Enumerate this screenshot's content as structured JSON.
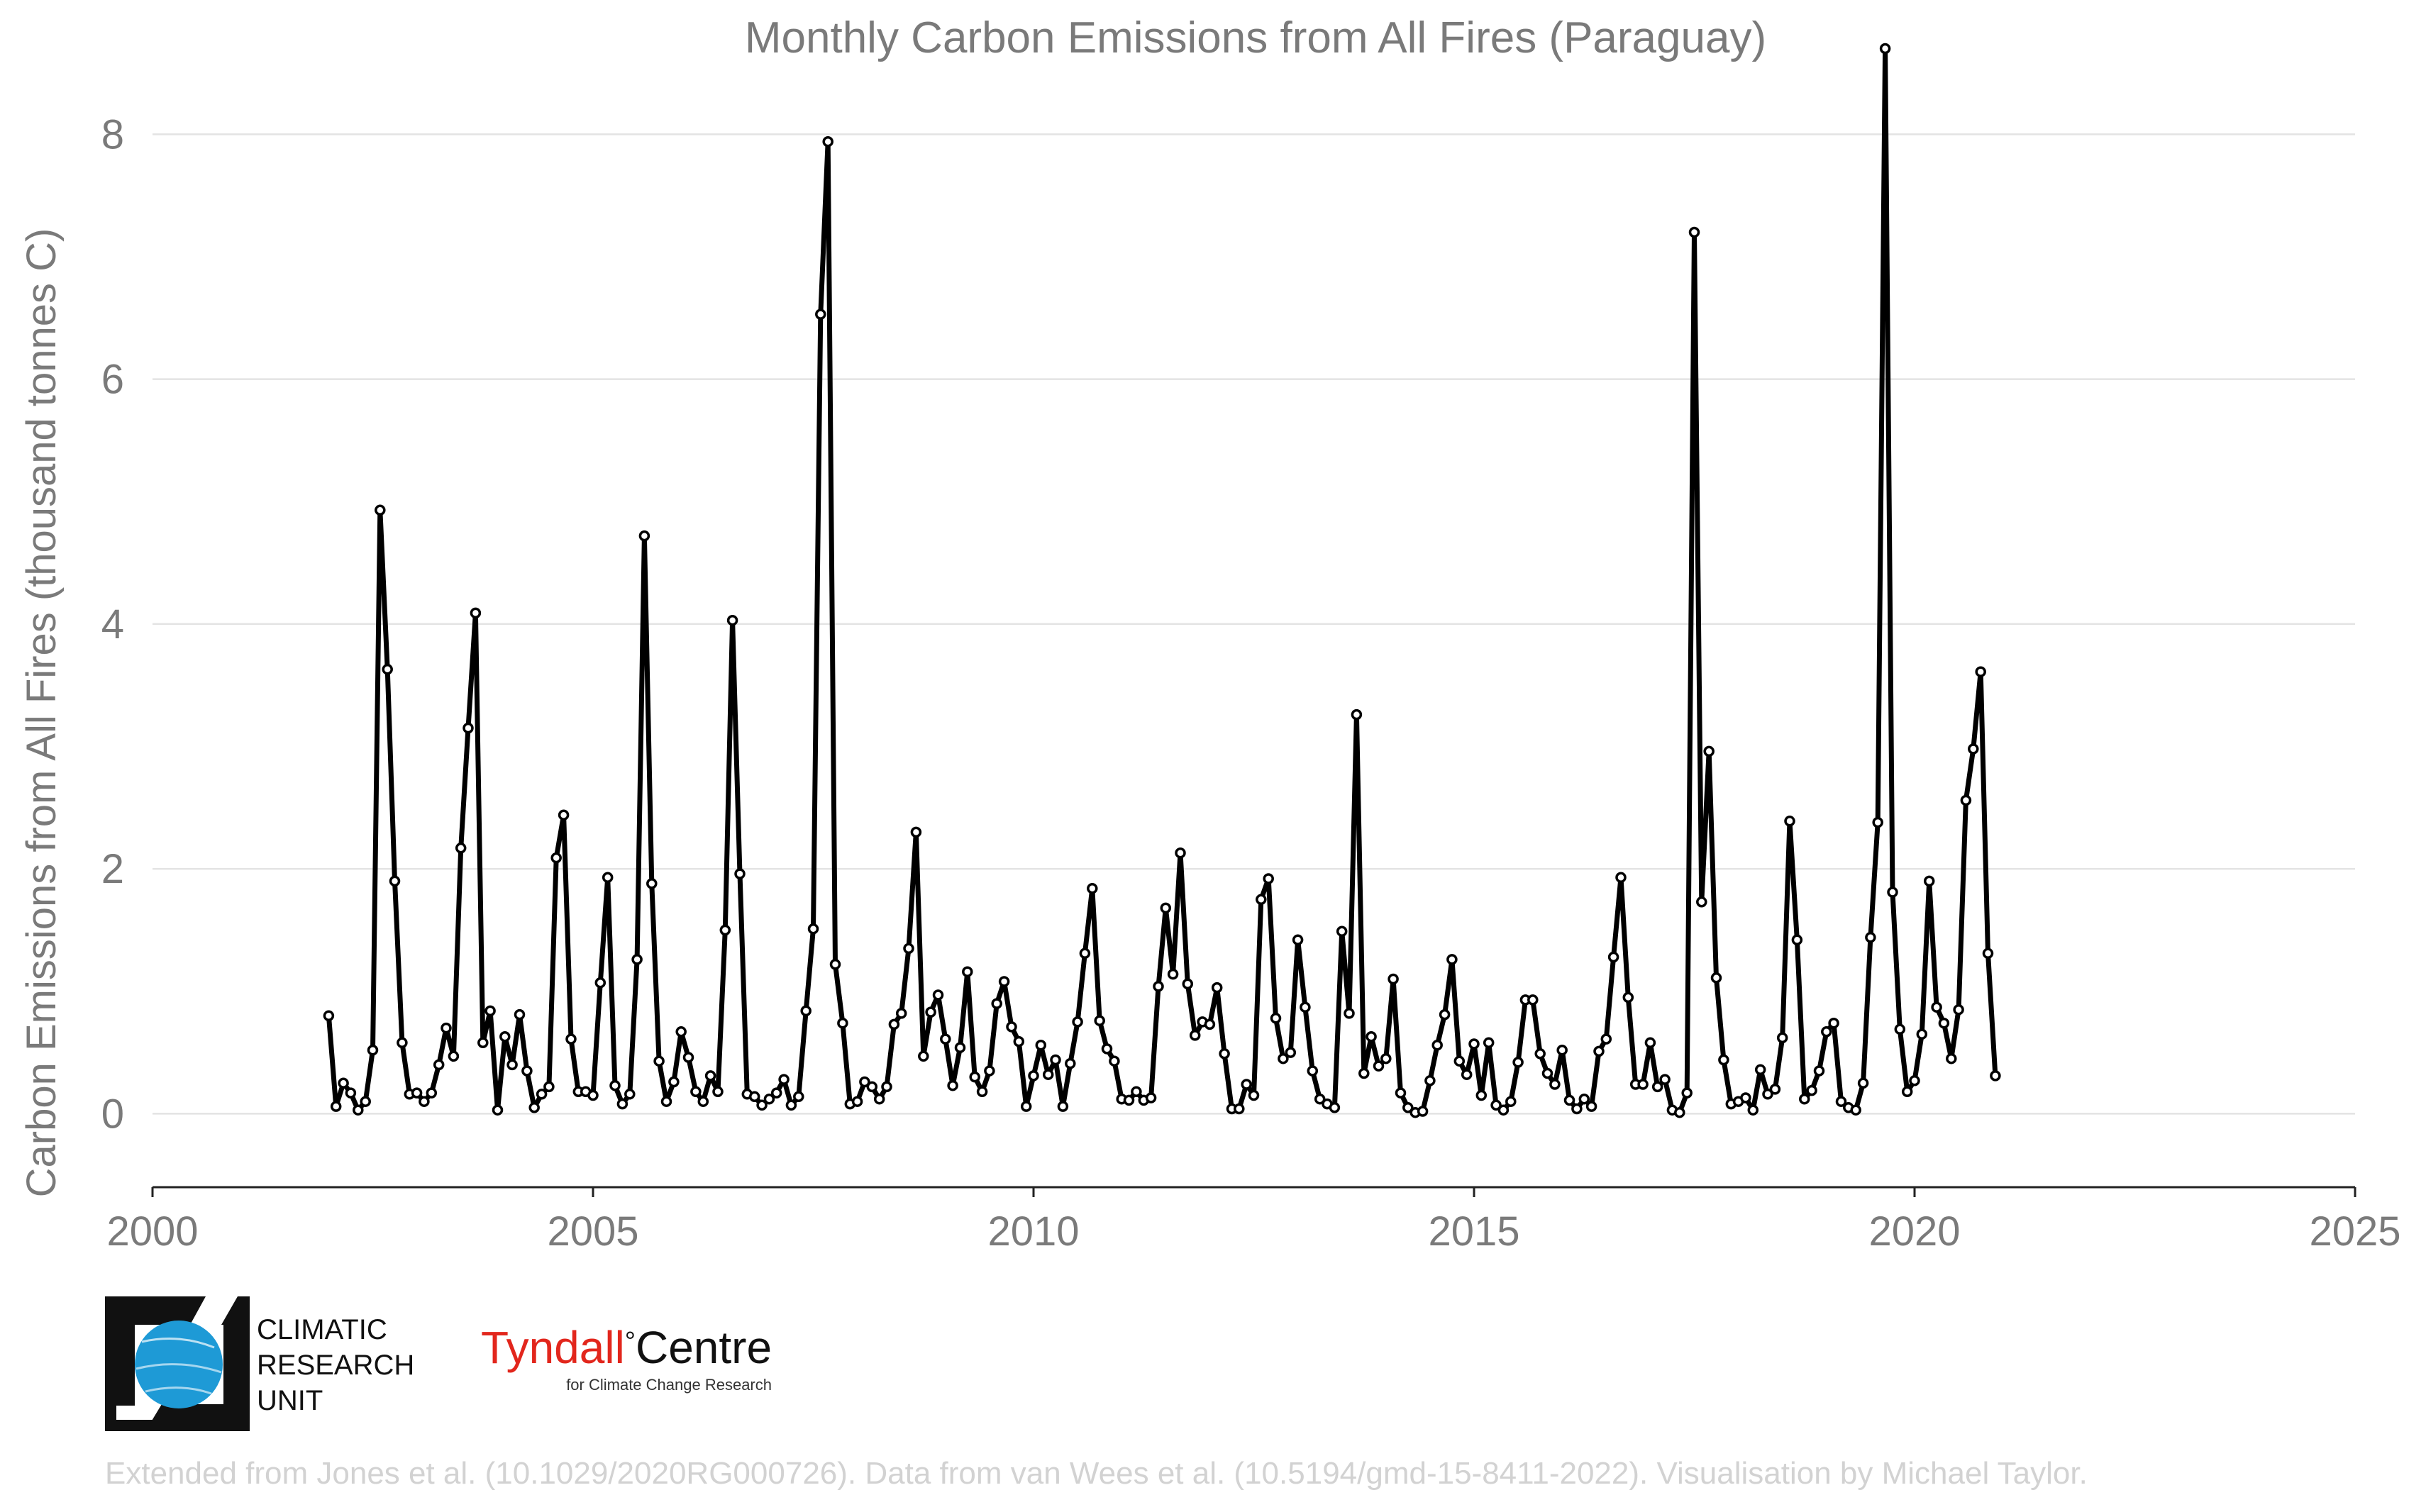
{
  "chart_data": {
    "type": "line",
    "title": "Monthly Carbon Emissions from All Fires (Paraguay)",
    "xlabel": "",
    "ylabel": "Carbon Emissions from All Fires (thousand tonnes C)",
    "xlim": [
      2000,
      2025
    ],
    "ylim": [
      -0.6,
      8.9
    ],
    "x_ticks": [
      2000,
      2005,
      2010,
      2015,
      2020,
      2025
    ],
    "y_ticks": [
      0,
      2,
      4,
      6,
      8
    ],
    "grid": "horizontal",
    "legend": "none",
    "line_color": "#000000",
    "series": [
      {
        "start_year": 2002,
        "start_month": 1,
        "frequency": "monthly",
        "values": [
          0.8,
          0.06,
          0.25,
          0.17,
          0.03,
          0.1,
          0.52,
          4.93,
          3.63,
          1.9,
          0.58,
          0.16,
          0.17,
          0.1,
          0.17,
          0.4,
          0.7,
          0.47,
          2.17,
          3.15,
          4.09,
          0.58,
          0.84,
          0.03,
          0.63,
          0.4,
          0.81,
          0.35,
          0.05,
          0.16,
          0.22,
          2.09,
          2.44,
          0.61,
          0.18,
          0.18,
          0.15,
          1.07,
          1.93,
          0.23,
          0.08,
          0.16,
          1.26,
          4.72,
          1.88,
          0.43,
          0.1,
          0.26,
          0.67,
          0.46,
          0.18,
          0.1,
          0.31,
          0.18,
          1.5,
          4.03,
          1.96,
          0.16,
          0.14,
          0.07,
          0.12,
          0.17,
          0.28,
          0.07,
          0.14,
          0.84,
          1.51,
          6.53,
          7.94,
          1.22,
          0.74,
          0.08,
          0.1,
          0.26,
          0.22,
          0.12,
          0.22,
          0.73,
          0.82,
          1.35,
          2.3,
          0.47,
          0.83,
          0.97,
          0.61,
          0.23,
          0.54,
          1.16,
          0.3,
          0.18,
          0.35,
          0.9,
          1.08,
          0.71,
          0.59,
          0.06,
          0.31,
          0.56,
          0.32,
          0.44,
          0.06,
          0.41,
          0.75,
          1.31,
          1.84,
          0.76,
          0.53,
          0.43,
          0.12,
          0.11,
          0.18,
          0.11,
          0.13,
          1.04,
          1.68,
          1.14,
          2.13,
          1.06,
          0.64,
          0.75,
          0.73,
          1.03,
          0.49,
          0.04,
          0.04,
          0.24,
          0.15,
          1.75,
          1.92,
          0.78,
          0.45,
          0.5,
          1.42,
          0.87,
          0.35,
          0.12,
          0.08,
          0.05,
          1.49,
          0.82,
          3.26,
          0.33,
          0.63,
          0.39,
          0.45,
          1.1,
          0.17,
          0.05,
          0.01,
          0.02,
          0.27,
          0.56,
          0.81,
          1.26,
          0.43,
          0.32,
          0.57,
          0.15,
          0.58,
          0.07,
          0.03,
          0.1,
          0.42,
          0.93,
          0.93,
          0.49,
          0.33,
          0.24,
          0.52,
          0.11,
          0.04,
          0.12,
          0.06,
          0.51,
          0.61,
          1.28,
          1.93,
          0.95,
          0.24,
          0.24,
          0.58,
          0.22,
          0.28,
          0.03,
          0.01,
          0.17,
          7.2,
          1.73,
          2.96,
          1.11,
          0.44,
          0.08,
          0.1,
          0.13,
          0.03,
          0.36,
          0.16,
          0.2,
          0.62,
          2.39,
          1.42,
          0.12,
          0.19,
          0.35,
          0.67,
          0.74,
          0.1,
          0.05,
          0.03,
          0.25,
          1.44,
          2.38,
          8.7,
          1.81,
          0.69,
          0.18,
          0.27,
          0.65,
          1.9,
          0.87,
          0.74,
          0.45,
          0.85,
          2.56,
          2.98,
          3.61,
          1.31,
          0.31
        ]
      }
    ]
  },
  "credit": "Extended from Jones et al. (10.1029/2020RG000726). Data from van Wees et al. (10.5194/gmd-15-8411-2022). Visualisation by Michael Taylor.",
  "logos": {
    "cru": {
      "line1": "CLIMATIC",
      "line2": "RESEARCH",
      "line3": "UNIT",
      "globe_color": "#1e9ad6"
    },
    "tyndall": {
      "name_left": "Tyndall",
      "degree": "°",
      "name_right": "Centre",
      "subtitle": "for Climate Change Research",
      "red": "#e2261c"
    }
  }
}
